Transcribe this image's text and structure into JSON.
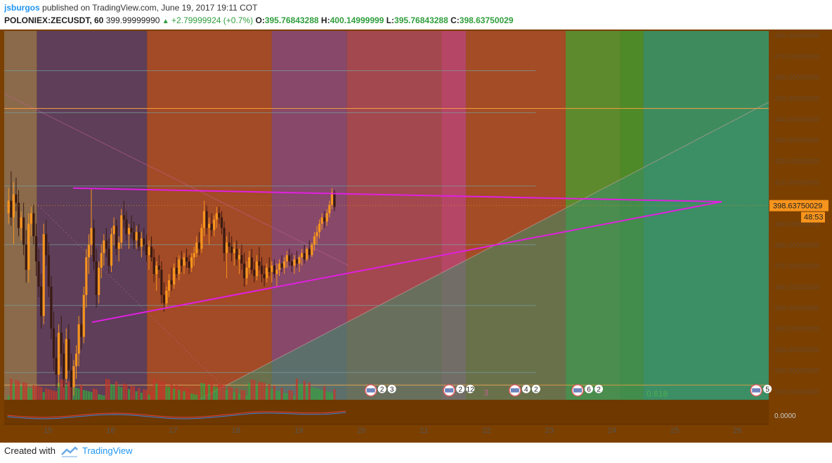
{
  "header": {
    "author": "jsburgos",
    "published_text": "published on TradingView.com, June 19, 2017 19:11 COT",
    "symbol": "POLONIEX:ZECUSDT, 60",
    "last": "399.99999990",
    "change": "+2.79999924 (+0.7%)",
    "o_label": "O:",
    "o_value": "395.76843288",
    "h_label": "H:",
    "h_value": "400.14999999",
    "l_label": "L:",
    "l_value": "395.76843288",
    "c_label": "C:",
    "c_value": "398.63750029"
  },
  "footer": {
    "created_with": "Created with",
    "brand": "TradingView"
  },
  "colors": {
    "background": "#7b3f00",
    "axis_bg": "#7b3f00",
    "trendline": "#e020e0",
    "bull": "#f7941d",
    "bear": "#3a1a12",
    "price_tag": "#f7941d",
    "fib_text": "#4caf50"
  },
  "chart_data": {
    "type": "candlestick",
    "title": "POLONIEX:ZECUSDT, 60",
    "x_ticks": [
      "15",
      "16",
      "17",
      "18",
      "19",
      "20",
      "21",
      "22",
      "23",
      "24",
      "25",
      "26"
    ],
    "y_ticks": [
      "480.00000000",
      "470.00000000",
      "460.00000000",
      "450.00000000",
      "440.00000000",
      "430.00000000",
      "420.00000000",
      "410.00000000",
      "400.00000000",
      "390.00000000",
      "380.00000000",
      "370.00000000",
      "360.00000000",
      "350.00000000",
      "340.00000000",
      "330.00000000",
      "320.00000000",
      "310.00000000"
    ],
    "ylim": [
      306,
      482
    ],
    "xlim": [
      14.3,
      26.5
    ],
    "last_price_label": "398.63750029",
    "countdown_label": "48:53",
    "indicator_tick": "0.0000",
    "fib_label": "0.618",
    "hidden_tag": "3",
    "event_counts": [
      "2",
      "3",
      "2",
      "12",
      "4",
      "2",
      "6",
      "2",
      "5"
    ],
    "event_x": [
      20.15,
      21.4,
      22.45,
      23.45,
      26.3
    ],
    "horizontal_levels": [
      463,
      443,
      408,
      380,
      351,
      319,
      313
    ],
    "orange_level": 445,
    "zones": [
      {
        "x0": 14.3,
        "x1": 14.82,
        "color": "#8a6a4a"
      },
      {
        "x0": 14.82,
        "x1": 16.58,
        "color": "#5e3e58"
      },
      {
        "x0": 16.58,
        "x1": 18.57,
        "color": "#a34a26"
      },
      {
        "x0": 18.57,
        "x1": 19.77,
        "color": "#87486a"
      },
      {
        "x0": 19.77,
        "x1": 21.28,
        "color": "#a3484e"
      },
      {
        "x0": 21.28,
        "x1": 21.67,
        "color": "#b54665"
      },
      {
        "x0": 21.67,
        "x1": 23.26,
        "color": "#a34c26"
      },
      {
        "x0": 23.26,
        "x1": 24.13,
        "color": "#5e8a2e"
      },
      {
        "x0": 24.13,
        "x1": 24.5,
        "color": "#4e8a28"
      },
      {
        "x0": 24.5,
        "x1": 26.5,
        "color": "#3e8c5e"
      }
    ],
    "triangle": {
      "upper": [
        [
          15.4,
          407
        ],
        [
          25.75,
          400.5
        ]
      ],
      "lower": [
        [
          15.7,
          343
        ],
        [
          25.75,
          400.5
        ]
      ]
    },
    "candles": [
      [
        14.37,
        395,
        407,
        390,
        401
      ],
      [
        14.41,
        401,
        415,
        389,
        393
      ],
      [
        14.45,
        393,
        410,
        380,
        404
      ],
      [
        14.49,
        404,
        412,
        396,
        400
      ],
      [
        14.53,
        400,
        406,
        384,
        388
      ],
      [
        14.57,
        388,
        396,
        382,
        393
      ],
      [
        14.61,
        393,
        400,
        375,
        380
      ],
      [
        14.65,
        380,
        387,
        362,
        368
      ],
      [
        14.69,
        368,
        395,
        362,
        390
      ],
      [
        14.73,
        390,
        398,
        384,
        395
      ],
      [
        14.77,
        395,
        399,
        380,
        384
      ],
      [
        14.81,
        384,
        390,
        365,
        372
      ],
      [
        14.85,
        372,
        378,
        355,
        360
      ],
      [
        14.89,
        360,
        366,
        340,
        346
      ],
      [
        14.93,
        346,
        390,
        342,
        385
      ],
      [
        14.97,
        385,
        392,
        370,
        375
      ],
      [
        15.01,
        375,
        381,
        355,
        360
      ],
      [
        15.05,
        360,
        365,
        335,
        340
      ],
      [
        15.09,
        340,
        348,
        320,
        326
      ],
      [
        15.13,
        326,
        336,
        312,
        318
      ],
      [
        15.17,
        318,
        342,
        312,
        338
      ],
      [
        15.21,
        338,
        346,
        322,
        328
      ],
      [
        15.25,
        328,
        333,
        312,
        316
      ],
      [
        15.29,
        316,
        340,
        314,
        335
      ],
      [
        15.33,
        335,
        342,
        316,
        320
      ],
      [
        15.37,
        320,
        328,
        306,
        312
      ],
      [
        15.41,
        312,
        325,
        308,
        322
      ],
      [
        15.45,
        322,
        332,
        316,
        328
      ],
      [
        15.49,
        328,
        346,
        322,
        342
      ],
      [
        15.53,
        342,
        350,
        330,
        336
      ],
      [
        15.57,
        336,
        360,
        333,
        356
      ],
      [
        15.61,
        356,
        378,
        350,
        374
      ],
      [
        15.65,
        374,
        385,
        366,
        380
      ],
      [
        15.69,
        380,
        407,
        375,
        388
      ],
      [
        15.73,
        388,
        392,
        368,
        372
      ],
      [
        15.77,
        372,
        378,
        350,
        356
      ],
      [
        15.81,
        356,
        372,
        352,
        369
      ],
      [
        15.85,
        369,
        380,
        364,
        376
      ],
      [
        15.89,
        376,
        385,
        370,
        382
      ],
      [
        15.93,
        382,
        388,
        374,
        378
      ],
      [
        15.97,
        378,
        383,
        366,
        370
      ],
      [
        16.01,
        370,
        388,
        367,
        385
      ],
      [
        16.05,
        385,
        393,
        380,
        389
      ],
      [
        16.09,
        389,
        392,
        375,
        378
      ],
      [
        16.13,
        378,
        384,
        372,
        381
      ],
      [
        16.17,
        381,
        397,
        378,
        394
      ],
      [
        16.21,
        394,
        401,
        388,
        392
      ],
      [
        16.25,
        392,
        396,
        382,
        385
      ],
      [
        16.29,
        385,
        390,
        378,
        388
      ],
      [
        16.33,
        388,
        394,
        383,
        386
      ],
      [
        16.37,
        386,
        391,
        378,
        382
      ],
      [
        16.41,
        382,
        389,
        378,
        386
      ],
      [
        16.45,
        386,
        390,
        377,
        379
      ],
      [
        16.49,
        379,
        386,
        374,
        383
      ],
      [
        16.53,
        383,
        388,
        377,
        380
      ],
      [
        16.57,
        380,
        385,
        372,
        375
      ],
      [
        16.61,
        375,
        382,
        368,
        379
      ],
      [
        16.65,
        379,
        384,
        372,
        374
      ],
      [
        16.69,
        374,
        378,
        362,
        366
      ],
      [
        16.73,
        366,
        372,
        358,
        370
      ],
      [
        16.77,
        370,
        375,
        364,
        368
      ],
      [
        16.81,
        368,
        372,
        352,
        356
      ],
      [
        16.85,
        356,
        362,
        348,
        352
      ],
      [
        16.89,
        352,
        360,
        350,
        358
      ],
      [
        16.93,
        358,
        366,
        355,
        363
      ],
      [
        16.97,
        363,
        369,
        358,
        361
      ],
      [
        17.01,
        361,
        371,
        359,
        369
      ],
      [
        17.05,
        369,
        374,
        364,
        366
      ],
      [
        17.09,
        366,
        375,
        363,
        373
      ],
      [
        17.13,
        373,
        377,
        367,
        370
      ],
      [
        17.17,
        370,
        376,
        366,
        374
      ],
      [
        17.21,
        374,
        378,
        369,
        372
      ],
      [
        17.25,
        372,
        375,
        366,
        369
      ],
      [
        17.29,
        369,
        376,
        367,
        374
      ],
      [
        17.33,
        374,
        379,
        370,
        376
      ],
      [
        17.37,
        376,
        384,
        374,
        381
      ],
      [
        17.41,
        381,
        386,
        375,
        378
      ],
      [
        17.45,
        378,
        390,
        376,
        388
      ],
      [
        17.49,
        388,
        401,
        384,
        396
      ],
      [
        17.53,
        396,
        399,
        385,
        388
      ],
      [
        17.57,
        388,
        393,
        380,
        390
      ],
      [
        17.61,
        390,
        395,
        384,
        387
      ],
      [
        17.65,
        387,
        394,
        384,
        392
      ],
      [
        17.69,
        392,
        398,
        388,
        395
      ],
      [
        17.73,
        395,
        398,
        390,
        393
      ],
      [
        17.77,
        393,
        396,
        385,
        388
      ],
      [
        17.81,
        388,
        391,
        372,
        376
      ],
      [
        17.85,
        376,
        384,
        364,
        381
      ],
      [
        17.89,
        381,
        386,
        376,
        379
      ],
      [
        17.93,
        379,
        384,
        372,
        376
      ],
      [
        17.97,
        376,
        381,
        370,
        378
      ],
      [
        18.01,
        378,
        382,
        370,
        373
      ],
      [
        18.05,
        373,
        378,
        366,
        375
      ],
      [
        18.09,
        375,
        380,
        368,
        371
      ],
      [
        18.13,
        371,
        376,
        360,
        364
      ],
      [
        18.17,
        364,
        372,
        361,
        369
      ],
      [
        18.21,
        369,
        377,
        366,
        374
      ],
      [
        18.25,
        374,
        378,
        366,
        368
      ],
      [
        18.29,
        368,
        372,
        362,
        365
      ],
      [
        18.33,
        365,
        375,
        363,
        372
      ],
      [
        18.37,
        372,
        379,
        368,
        370
      ],
      [
        18.41,
        370,
        374,
        362,
        366
      ],
      [
        18.45,
        366,
        370,
        360,
        364
      ],
      [
        18.49,
        364,
        371,
        362,
        369
      ],
      [
        18.53,
        369,
        374,
        365,
        367
      ],
      [
        18.57,
        367,
        372,
        362,
        370
      ],
      [
        18.61,
        370,
        373,
        364,
        366
      ],
      [
        18.65,
        366,
        371,
        360,
        368
      ],
      [
        18.69,
        368,
        373,
        365,
        371
      ],
      [
        18.73,
        371,
        375,
        367,
        369
      ],
      [
        18.77,
        369,
        374,
        366,
        372
      ],
      [
        18.81,
        372,
        377,
        369,
        375
      ],
      [
        18.85,
        375,
        378,
        370,
        372
      ],
      [
        18.89,
        372,
        376,
        367,
        370
      ],
      [
        18.93,
        370,
        375,
        366,
        373
      ],
      [
        18.97,
        373,
        377,
        369,
        371
      ],
      [
        19.01,
        371,
        375,
        367,
        374
      ],
      [
        19.05,
        374,
        378,
        370,
        376
      ],
      [
        19.09,
        376,
        380,
        371,
        373
      ],
      [
        19.13,
        373,
        379,
        372,
        378
      ],
      [
        19.17,
        378,
        382,
        373,
        375
      ],
      [
        19.21,
        375,
        381,
        374,
        380
      ],
      [
        19.25,
        380,
        386,
        377,
        384
      ],
      [
        19.29,
        384,
        389,
        380,
        386
      ],
      [
        19.33,
        386,
        392,
        383,
        390
      ],
      [
        19.37,
        390,
        395,
        387,
        393
      ],
      [
        19.41,
        393,
        396,
        388,
        391
      ],
      [
        19.45,
        391,
        397,
        389,
        395
      ],
      [
        19.49,
        395,
        401,
        393,
        399
      ],
      [
        19.53,
        399,
        407,
        397,
        405
      ],
      [
        19.57,
        405,
        406,
        396,
        398
      ]
    ]
  }
}
